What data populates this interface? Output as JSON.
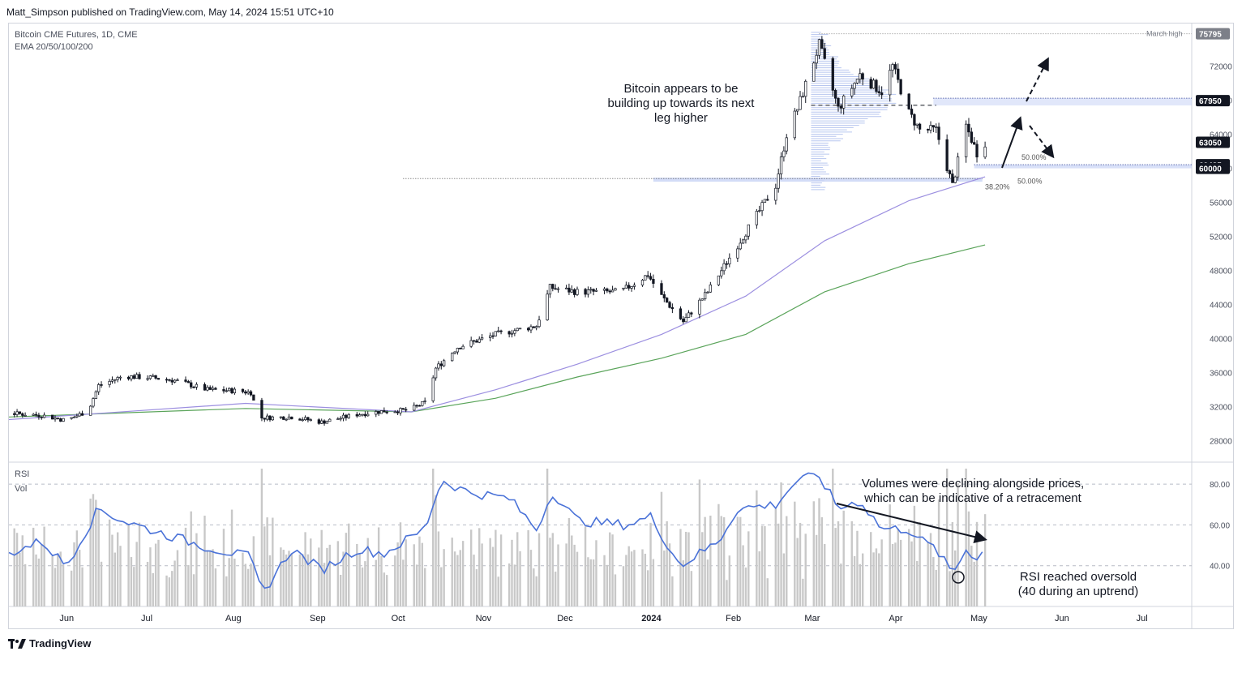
{
  "header": {
    "publisher": "Matt_Simpson published on TradingView.com, May 14, 2024 15:51 UTC+10"
  },
  "legend": {
    "symbol": "Bitcoin CME Futures, 1D, CME",
    "indicator": "EMA 20/50/100/200",
    "rsi_label": "RSI",
    "vol_label": "Vol"
  },
  "annotations": {
    "main_note": [
      "Bitcoin appears to be",
      "building up towards its next",
      "leg higher"
    ],
    "volume_note": [
      "Volumes were declining alongside prices,",
      "which can be indicative of a retracement"
    ],
    "rsi_note": [
      "RSI reached oversold",
      "(40 during an uptrend)"
    ],
    "march_high": "March high",
    "fib_50_upper": "50.00%",
    "fib_38": "38.20%",
    "fib_50_lower": "50.00%"
  },
  "footer": {
    "brand": "TradingView"
  },
  "colors": {
    "up": "#131722",
    "down": "#131722",
    "ema100": "#9c8fe0",
    "ema200": "#5aa45a",
    "rsi": "#4a72d8",
    "vol": "#c8c8c8",
    "zone": "#c8d3f5"
  },
  "chart_data": {
    "type": "candlestick",
    "title": "Bitcoin CME Futures, 1D, CME",
    "price_axis": {
      "ticks": [
        28000,
        32000,
        36000,
        40000,
        44000,
        48000,
        52000,
        56000,
        60000,
        64000,
        68000,
        72000
      ],
      "ylim": [
        25500,
        77000
      ]
    },
    "price_badges": [
      {
        "label": "75795",
        "value": 75795,
        "dark": false
      },
      {
        "label": "67950",
        "value": 67950,
        "dark": true
      },
      {
        "label": "63050",
        "value": 63050,
        "dark": true
      },
      {
        "label": "60425",
        "value": 60425,
        "dark": true
      },
      {
        "label": "60000",
        "value": 60000,
        "dark": true
      }
    ],
    "x_axis": {
      "labels": [
        "Jun",
        "Jul",
        "Aug",
        "Sep",
        "Oct",
        "Nov",
        "Dec",
        "2024",
        "Feb",
        "Mar",
        "Apr",
        "May",
        "Jun",
        "Jul"
      ],
      "bold": [
        "2024"
      ]
    },
    "rsi_axis": {
      "ticks": [
        40,
        60,
        80
      ],
      "labels": [
        "40.00",
        "60.00",
        "80.00"
      ],
      "ylim": [
        20,
        90
      ]
    },
    "close_path": [
      [
        "2023-05-22",
        31200
      ],
      [
        "2023-06-01",
        31000
      ],
      [
        "2023-06-10",
        30400
      ],
      [
        "2023-06-18",
        31500
      ],
      [
        "2023-06-22",
        34500
      ],
      [
        "2023-07-01",
        35600
      ],
      [
        "2023-07-12",
        35400
      ],
      [
        "2023-07-20",
        35100
      ],
      [
        "2023-08-01",
        34000
      ],
      [
        "2023-08-10",
        33900
      ],
      [
        "2023-08-17",
        33700
      ],
      [
        "2023-08-20",
        30700
      ],
      [
        "2023-09-01",
        30800
      ],
      [
        "2023-09-12",
        30200
      ],
      [
        "2023-09-25",
        31100
      ],
      [
        "2023-10-05",
        31500
      ],
      [
        "2023-10-14",
        31600
      ],
      [
        "2023-10-20",
        32500
      ],
      [
        "2023-10-24",
        36500
      ],
      [
        "2023-11-01",
        39000
      ],
      [
        "2023-11-15",
        40500
      ],
      [
        "2023-11-30",
        41500
      ],
      [
        "2023-12-05",
        46000
      ],
      [
        "2023-12-15",
        45500
      ],
      [
        "2023-12-31",
        45500
      ],
      [
        "2024-01-10",
        47500
      ],
      [
        "2024-01-15",
        45000
      ],
      [
        "2024-01-23",
        42000
      ],
      [
        "2024-02-01",
        45500
      ],
      [
        "2024-02-10",
        50000
      ],
      [
        "2024-02-20",
        55000
      ],
      [
        "2024-02-26",
        58000
      ],
      [
        "2024-03-01",
        64000
      ],
      [
        "2024-03-05",
        67000
      ],
      [
        "2024-03-13",
        74500
      ],
      [
        "2024-03-20",
        67000
      ],
      [
        "2024-03-28",
        71000
      ],
      [
        "2024-04-05",
        69000
      ],
      [
        "2024-04-09",
        72000
      ],
      [
        "2024-04-15",
        66500
      ],
      [
        "2024-04-19",
        64500
      ],
      [
        "2024-04-25",
        64500
      ],
      [
        "2024-05-01",
        58000
      ],
      [
        "2024-05-06",
        65000
      ],
      [
        "2024-05-10",
        61800
      ],
      [
        "2024-05-13",
        63050
      ]
    ],
    "ema100": [
      [
        "2023-05-20",
        30500
      ],
      [
        "2023-08-15",
        32400
      ],
      [
        "2023-10-15",
        31400
      ],
      [
        "2023-11-15",
        34000
      ],
      [
        "2023-12-15",
        37000
      ],
      [
        "2024-01-15",
        40500
      ],
      [
        "2024-02-15",
        45000
      ],
      [
        "2024-03-15",
        51500
      ],
      [
        "2024-04-15",
        56200
      ],
      [
        "2024-05-13",
        59000
      ]
    ],
    "ema200": [
      [
        "2023-05-20",
        30800
      ],
      [
        "2023-08-15",
        31800
      ],
      [
        "2023-10-15",
        31400
      ],
      [
        "2023-11-15",
        33000
      ],
      [
        "2023-12-15",
        35500
      ],
      [
        "2024-01-15",
        37700
      ],
      [
        "2024-02-15",
        40500
      ],
      [
        "2024-03-15",
        45500
      ],
      [
        "2024-04-15",
        48800
      ],
      [
        "2024-05-13",
        51000
      ]
    ],
    "rsi": [
      [
        "2023-05-20",
        46
      ],
      [
        "2023-06-01",
        52
      ],
      [
        "2023-06-10",
        40
      ],
      [
        "2023-06-22",
        68
      ],
      [
        "2023-07-01",
        62
      ],
      [
        "2023-07-15",
        56
      ],
      [
        "2023-08-01",
        49
      ],
      [
        "2023-08-17",
        44
      ],
      [
        "2023-08-21",
        26
      ],
      [
        "2023-09-01",
        48
      ],
      [
        "2023-09-12",
        38
      ],
      [
        "2023-09-25",
        48
      ],
      [
        "2023-10-05",
        46
      ],
      [
        "2023-10-20",
        58
      ],
      [
        "2023-10-26",
        82
      ],
      [
        "2023-11-05",
        76
      ],
      [
        "2023-11-20",
        73
      ],
      [
        "2023-11-30",
        58
      ],
      [
        "2023-12-06",
        76
      ],
      [
        "2023-12-15",
        62
      ],
      [
        "2024-01-02",
        60
      ],
      [
        "2024-01-11",
        64
      ],
      [
        "2024-01-22",
        40
      ],
      [
        "2024-02-05",
        52
      ],
      [
        "2024-02-12",
        68
      ],
      [
        "2024-02-26",
        70
      ],
      [
        "2024-03-05",
        82
      ],
      [
        "2024-03-13",
        84
      ],
      [
        "2024-03-20",
        68
      ],
      [
        "2024-03-28",
        72
      ],
      [
        "2024-04-05",
        58
      ],
      [
        "2024-04-15",
        58
      ],
      [
        "2024-04-20",
        52
      ],
      [
        "2024-04-25",
        48
      ],
      [
        "2024-05-01",
        36
      ],
      [
        "2024-05-06",
        48
      ],
      [
        "2024-05-10",
        44
      ],
      [
        "2024-05-13",
        48
      ]
    ],
    "volume_profile_range": [
      57500,
      76000
    ],
    "levels": {
      "march_high": 75795,
      "resistance": 67950,
      "range_mid": 67400,
      "support_top": 60425,
      "support_bottom": 60000,
      "fib_line": 58800
    }
  }
}
